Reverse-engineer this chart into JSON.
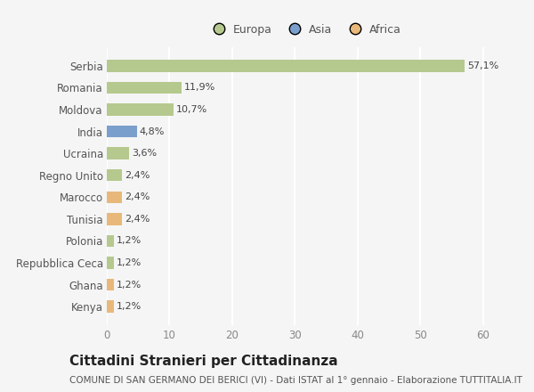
{
  "categories": [
    "Serbia",
    "Romania",
    "Moldova",
    "India",
    "Ucraina",
    "Regno Unito",
    "Marocco",
    "Tunisia",
    "Polonia",
    "Repubblica Ceca",
    "Ghana",
    "Kenya"
  ],
  "values": [
    57.1,
    11.9,
    10.7,
    4.8,
    3.6,
    2.4,
    2.4,
    2.4,
    1.2,
    1.2,
    1.2,
    1.2
  ],
  "labels": [
    "57,1%",
    "11,9%",
    "10,7%",
    "4,8%",
    "3,6%",
    "2,4%",
    "2,4%",
    "2,4%",
    "1,2%",
    "1,2%",
    "1,2%",
    "1,2%"
  ],
  "continents": [
    "Europa",
    "Europa",
    "Europa",
    "Asia",
    "Europa",
    "Europa",
    "Africa",
    "Africa",
    "Europa",
    "Europa",
    "Africa",
    "Africa"
  ],
  "colors": {
    "Europa": "#b5c98e",
    "Asia": "#7b9fcc",
    "Africa": "#e8b87a"
  },
  "legend_items": [
    "Europa",
    "Asia",
    "Africa"
  ],
  "legend_colors": [
    "#b5c98e",
    "#7b9fcc",
    "#e8b87a"
  ],
  "xlim": [
    0,
    63
  ],
  "xticks": [
    0,
    10,
    20,
    30,
    40,
    50,
    60
  ],
  "title": "Cittadini Stranieri per Cittadinanza",
  "subtitle": "COMUNE DI SAN GERMANO DEI BERICI (VI) - Dati ISTAT al 1° gennaio - Elaborazione TUTTITALIA.IT",
  "title_fontsize": 11,
  "subtitle_fontsize": 7.5,
  "bg_color": "#f5f5f5",
  "plot_bg_color": "#f5f5f5",
  "grid_color": "#ffffff",
  "bar_label_fontsize": 8,
  "ytick_fontsize": 8.5,
  "xtick_fontsize": 8.5,
  "bar_height": 0.55
}
